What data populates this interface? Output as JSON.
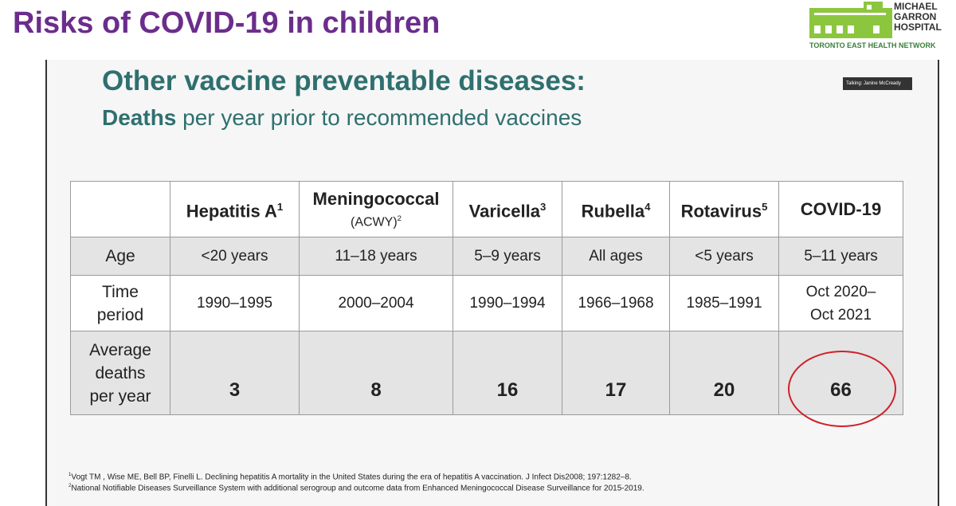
{
  "header": {
    "title": "Risks of COVID-19 in children"
  },
  "logo": {
    "lines": [
      "MICHAEL",
      "GARRON",
      "HOSPITAL"
    ],
    "network": "TORONTO EAST HEALTH NETWORK"
  },
  "talking": "Talking: Janine McCready",
  "slide": {
    "title": "Other vaccine preventable diseases:",
    "subtitle": {
      "bold": "Deaths",
      "rest": " per year prior to recommended vaccines"
    },
    "table": {
      "columns": [
        {
          "name": "Hepatitis A",
          "note": "1"
        },
        {
          "name": "Meningococcal",
          "sub": "(ACWY)",
          "note": "2"
        },
        {
          "name": "Varicella",
          "note": "3"
        },
        {
          "name": "Rubella",
          "note": "4"
        },
        {
          "name": "Rotavirus",
          "note": "5"
        },
        {
          "name": "COVID-19"
        }
      ],
      "rows": [
        {
          "label": [
            "Age"
          ],
          "cells": [
            [
              "<20 years"
            ],
            [
              "11–18 years"
            ],
            [
              "5–9 years"
            ],
            [
              "All ages"
            ],
            [
              "<5 years"
            ],
            [
              "5–11 years"
            ]
          ]
        },
        {
          "label": [
            "Time",
            "period"
          ],
          "cells": [
            [
              "1990–1995"
            ],
            [
              "2000–2004"
            ],
            [
              "1990–1994"
            ],
            [
              "1966–1968"
            ],
            [
              "1985–1991"
            ],
            [
              "Oct 2020–",
              "Oct 2021"
            ]
          ]
        },
        {
          "label": [
            "Average",
            "deaths",
            "per year"
          ],
          "cells": [
            3,
            8,
            16,
            17,
            20,
            66
          ]
        }
      ]
    },
    "footnotes": [
      {
        "note": "1",
        "text": "Vogt TM , Wise ME, Bell BP, Finelli L. Declining hepatitis A mortality in the United States during the era of hepatitis A vaccination. J Infect Dis2008; 197:1282–8."
      },
      {
        "note": "2",
        "text": "National Notifiable Diseases Surveillance System with additional serogroup and outcome data from Enhanced Meningococcal Disease Surveillance for 2015-2019."
      }
    ]
  }
}
